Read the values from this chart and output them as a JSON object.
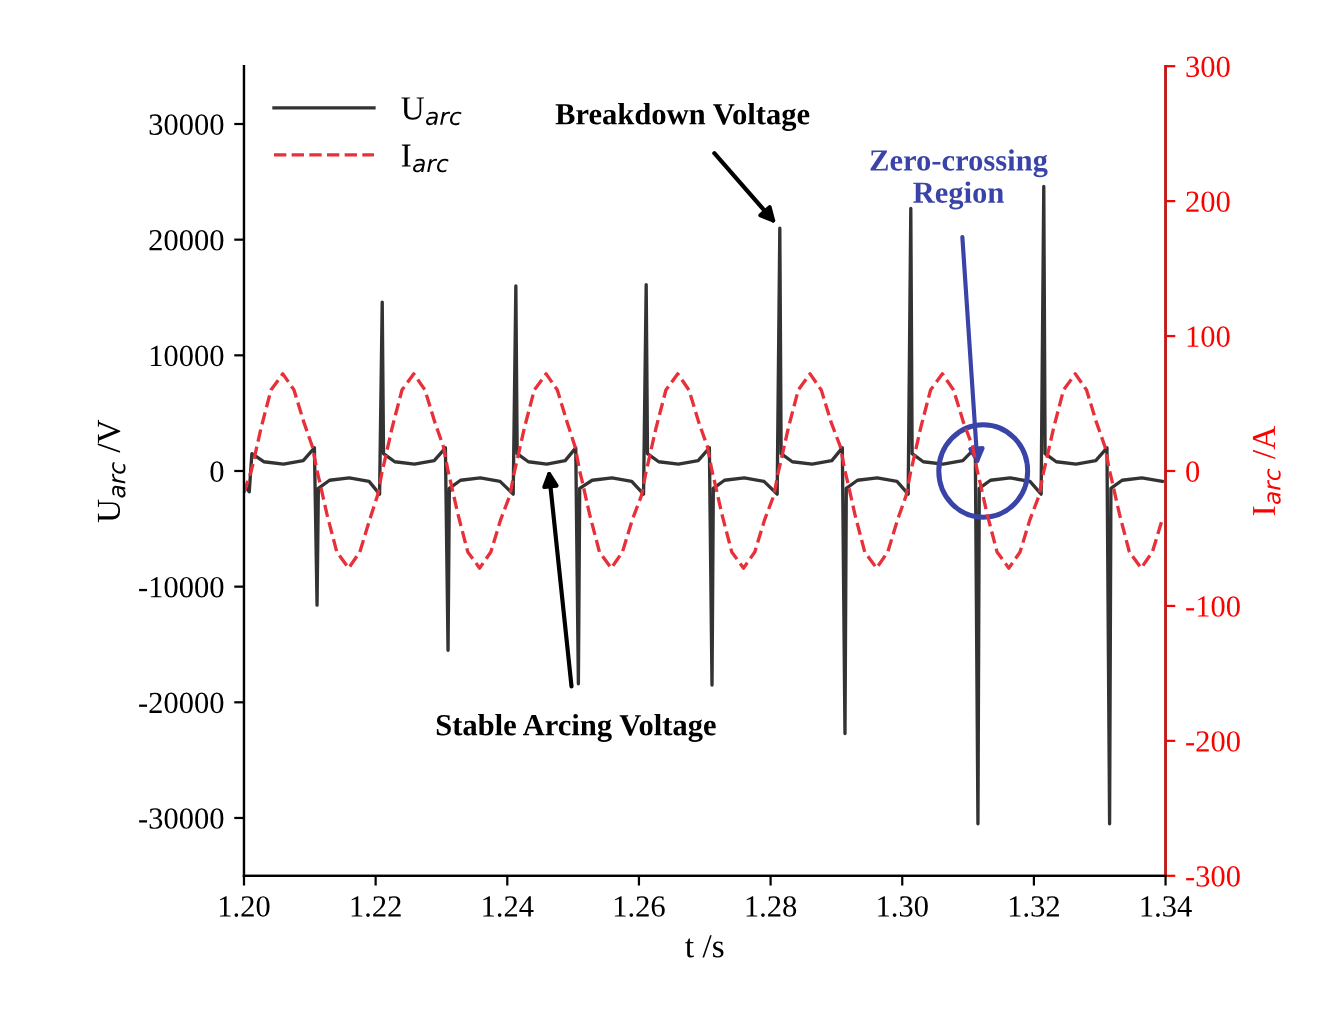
{
  "chart_data": {
    "type": "line",
    "xlabel": "t /s",
    "ylabel": "U$_{arc}$ /V",
    "y2label": "I$_{arc}$ /A",
    "xlim": [
      1.2,
      1.34
    ],
    "xticks": [
      {
        "value": 1.2,
        "label": "1.20"
      },
      {
        "value": 1.22,
        "label": "1.22"
      },
      {
        "value": 1.24,
        "label": "1.24"
      },
      {
        "value": 1.26,
        "label": "1.26"
      },
      {
        "value": 1.28,
        "label": "1.28"
      },
      {
        "value": 1.3,
        "label": "1.30"
      },
      {
        "value": 1.32,
        "label": "1.32"
      },
      {
        "value": 1.34,
        "label": "1.34"
      }
    ],
    "ylim": [
      -35000,
      35000
    ],
    "yticks": [
      -30000,
      -20000,
      -10000,
      0,
      10000,
      20000,
      30000
    ],
    "y2lim": [
      -300,
      300
    ],
    "y2ticks": [
      -300,
      -200,
      -100,
      0,
      100,
      200,
      300
    ],
    "legend": "top left",
    "grid": false,
    "annotations": [
      {
        "text": "Breakdown Voltage",
        "x": 1.2814,
        "y": 21000
      },
      {
        "text": "Stable Arcing Voltage",
        "x": 1.2462,
        "y": 600
      },
      {
        "text": "Zero-crossing\nRegion",
        "x": 1.3115,
        "y": 0
      }
    ],
    "series": [
      {
        "name": "U$_{arc}$",
        "color": "#333333",
        "line_style": "solid",
        "x": [
          1.2,
          1.2008,
          1.2012,
          1.203,
          1.206,
          1.209,
          1.2107,
          1.2111,
          1.2113,
          1.213,
          1.216,
          1.219,
          1.2206,
          1.221,
          1.2212,
          1.2229,
          1.2259,
          1.2289,
          1.2306,
          1.231,
          1.2312,
          1.2329,
          1.2359,
          1.2389,
          1.2409,
          1.2413,
          1.2415,
          1.2432,
          1.246,
          1.2488,
          1.2504,
          1.2508,
          1.251,
          1.2529,
          1.2559,
          1.2589,
          1.2607,
          1.2611,
          1.2613,
          1.263,
          1.266,
          1.269,
          1.2707,
          1.2711,
          1.2713,
          1.273,
          1.276,
          1.279,
          1.281,
          1.2814,
          1.2816,
          1.2833,
          1.2863,
          1.2893,
          1.2909,
          1.2913,
          1.2915,
          1.2932,
          1.2962,
          1.2992,
          1.3009,
          1.3013,
          1.3015,
          1.3032,
          1.3062,
          1.3092,
          1.3111,
          1.3115,
          1.3117,
          1.3134,
          1.3164,
          1.3194,
          1.3211,
          1.3215,
          1.3217,
          1.3234,
          1.3264,
          1.3294,
          1.3311,
          1.3315,
          1.3317,
          1.3334,
          1.3364,
          1.3395
        ],
        "values": [
          -1200,
          -1800,
          1500,
          800,
          600,
          900,
          2000,
          -11600,
          -1500,
          -800,
          -600,
          -900,
          -2000,
          14600,
          1500,
          800,
          600,
          900,
          2000,
          -15500,
          -1500,
          -800,
          -600,
          -900,
          -2000,
          16000,
          1500,
          800,
          600,
          900,
          2000,
          -18400,
          -1500,
          -800,
          -600,
          -900,
          -2000,
          16100,
          1500,
          800,
          600,
          900,
          2000,
          -18500,
          -1500,
          -800,
          -600,
          -900,
          -2000,
          21000,
          1500,
          800,
          600,
          900,
          2000,
          -22700,
          -1500,
          -800,
          -600,
          -900,
          -2000,
          22700,
          1500,
          800,
          600,
          900,
          2000,
          -30500,
          -1500,
          -800,
          -600,
          -900,
          -2000,
          24600,
          1500,
          800,
          600,
          900,
          2000,
          -30500,
          -1500,
          -800,
          -600,
          -900
        ]
      },
      {
        "name": "I$_{arc}$",
        "color": "#e8303a",
        "line_style": "dashed",
        "axis": "y2",
        "x": [
          1.2,
          1.2011,
          1.2014,
          1.2026,
          1.2041,
          1.2059,
          1.2076,
          1.2091,
          1.2104,
          1.2111,
          1.2114,
          1.2126,
          1.2141,
          1.2159,
          1.2176,
          1.2191,
          1.2203,
          1.221,
          1.2213,
          1.2225,
          1.224,
          1.2258,
          1.2275,
          1.229,
          1.2303,
          1.231,
          1.2313,
          1.2325,
          1.234,
          1.2358,
          1.2375,
          1.239,
          1.2404,
          1.2411,
          1.2414,
          1.2426,
          1.2441,
          1.2459,
          1.2476,
          1.2491,
          1.2503,
          1.251,
          1.2513,
          1.2525,
          1.254,
          1.2558,
          1.2575,
          1.259,
          1.2604,
          1.2611,
          1.2614,
          1.2626,
          1.2641,
          1.2659,
          1.2676,
          1.2691,
          1.2704,
          1.2711,
          1.2714,
          1.2726,
          1.2741,
          1.2759,
          1.2776,
          1.2791,
          1.2805,
          1.2812,
          1.2815,
          1.2827,
          1.2842,
          1.286,
          1.2877,
          1.2892,
          1.2906,
          1.2913,
          1.2916,
          1.2928,
          1.2943,
          1.2961,
          1.2978,
          1.2993,
          1.3006,
          1.3013,
          1.3016,
          1.3028,
          1.3043,
          1.3061,
          1.3078,
          1.3093,
          1.3107,
          1.3114,
          1.3117,
          1.3129,
          1.3144,
          1.3162,
          1.3179,
          1.3194,
          1.3208,
          1.3215,
          1.3218,
          1.323,
          1.3245,
          1.3263,
          1.328,
          1.3295,
          1.3308,
          1.3315,
          1.3318,
          1.333,
          1.3345,
          1.3363,
          1.338,
          1.3395
        ],
        "values": [
          -16,
          0,
          6,
          32,
          60,
          72,
          60,
          36,
          18,
          0,
          -6,
          -32,
          -60,
          -72,
          -60,
          -36,
          -18,
          0,
          6,
          32,
          60,
          72,
          60,
          36,
          18,
          0,
          -6,
          -32,
          -60,
          -72,
          -60,
          -36,
          -18,
          0,
          6,
          32,
          60,
          72,
          60,
          36,
          18,
          0,
          -6,
          -32,
          -60,
          -72,
          -60,
          -36,
          -18,
          0,
          6,
          32,
          60,
          72,
          60,
          36,
          18,
          0,
          -6,
          -32,
          -60,
          -72,
          -60,
          -36,
          -18,
          0,
          6,
          32,
          60,
          72,
          60,
          36,
          18,
          0,
          -6,
          -32,
          -60,
          -72,
          -60,
          -36,
          -18,
          0,
          6,
          32,
          60,
          72,
          60,
          36,
          18,
          0,
          -6,
          -32,
          -60,
          -72,
          -60,
          -36,
          -18,
          0,
          6,
          32,
          60,
          72,
          60,
          36,
          18,
          0,
          -6,
          -32,
          -60,
          -72,
          -60,
          -36
        ]
      }
    ]
  }
}
